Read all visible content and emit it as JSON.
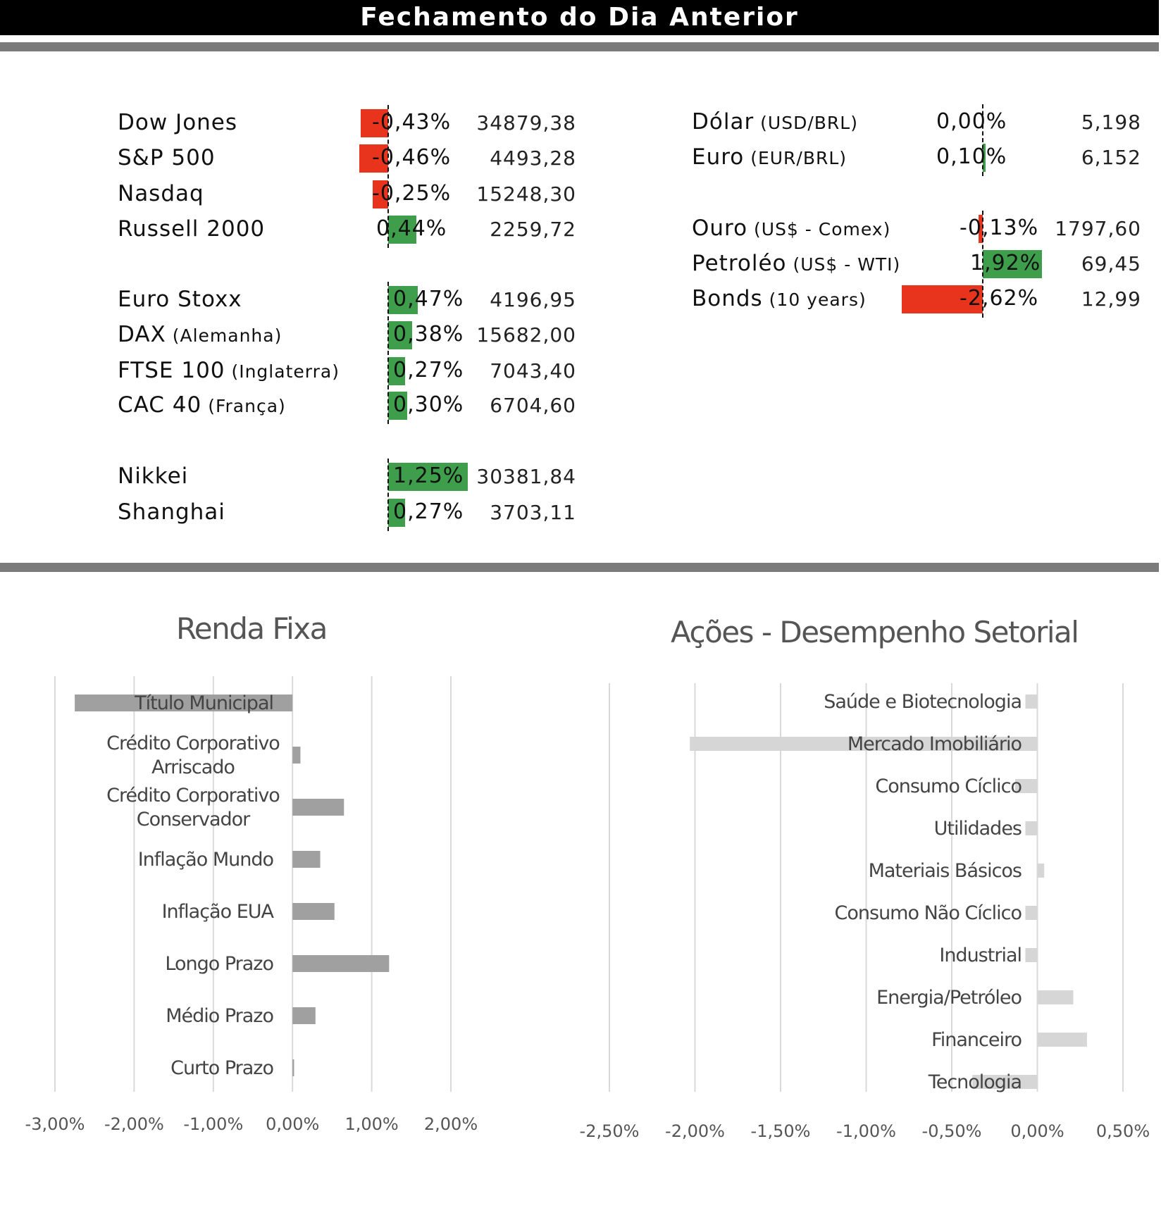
{
  "header": {
    "title": "Fechamento do Dia Anterior"
  },
  "colors": {
    "negative": "#e8341c",
    "positive": "#3e9e4b",
    "renda_bar": "#a0a0a0",
    "setor_bar": "#d6d6d6",
    "rule": "#7a7a7a"
  },
  "left_table": {
    "groups": [
      {
        "rows": [
          {
            "name": "Dow Jones",
            "sub": "",
            "pct": "-0,43%",
            "pct_value": -0.43,
            "value": "34879,38"
          },
          {
            "name": "S&P 500",
            "sub": "",
            "pct": "-0,46%",
            "pct_value": -0.46,
            "value": "4493,28"
          },
          {
            "name": "Nasdaq",
            "sub": "",
            "pct": "-0,25%",
            "pct_value": -0.25,
            "value": "15248,30"
          },
          {
            "name": "Russell 2000",
            "sub": "",
            "pct": "0,44%",
            "pct_value": 0.44,
            "value": "2259,72"
          }
        ]
      },
      {
        "rows": [
          {
            "name": "Euro Stoxx",
            "sub": "",
            "pct": "0,47%",
            "pct_value": 0.47,
            "value": "4196,95"
          },
          {
            "name": "DAX",
            "sub": "(Alemanha)",
            "pct": "0,38%",
            "pct_value": 0.38,
            "value": "15682,00"
          },
          {
            "name": "FTSE 100",
            "sub": "(Inglaterra)",
            "pct": "0,27%",
            "pct_value": 0.27,
            "value": "7043,40"
          },
          {
            "name": "CAC 40",
            "sub": "(França)",
            "pct": "0,30%",
            "pct_value": 0.3,
            "value": "6704,60"
          }
        ]
      },
      {
        "rows": [
          {
            "name": "Nikkei",
            "sub": "",
            "pct": "1,25%",
            "pct_value": 1.25,
            "value": "30381,84"
          },
          {
            "name": "Shanghai",
            "sub": "",
            "pct": "0,27%",
            "pct_value": 0.27,
            "value": "3703,11"
          }
        ]
      }
    ]
  },
  "right_table": {
    "groups": [
      {
        "rows": [
          {
            "name": "Dólar",
            "sub": "(USD/BRL)",
            "pct": "0,00%",
            "pct_value": 0.0,
            "value": "5,198"
          },
          {
            "name": "Euro",
            "sub": "(EUR/BRL)",
            "pct": "0,10%",
            "pct_value": 0.1,
            "value": "6,152"
          }
        ]
      },
      {
        "rows": [
          {
            "name": "Ouro",
            "sub": "(US$ - Comex)",
            "pct": "-0,13%",
            "pct_value": -0.13,
            "value": "1797,60"
          },
          {
            "name": "Petroléo",
            "sub": "(US$ - WTI)",
            "pct": "1,92%",
            "pct_value": 1.92,
            "value": "69,45"
          },
          {
            "name": "Bonds",
            "sub": "(10 years)",
            "pct": "-2,62%",
            "pct_value": -2.62,
            "value": "12,99"
          }
        ]
      }
    ]
  },
  "chart_data": [
    {
      "type": "bar",
      "orientation": "horizontal",
      "title": "Renda Fixa",
      "categories": [
        "Título Municipal",
        "Crédito Corporativo Arriscado",
        "Crédito Corporativo Conservador",
        "Inflação Mundo",
        "Inflação EUA",
        "Longo Prazo",
        "Médio Prazo",
        "Curto Prazo"
      ],
      "values": [
        -2.75,
        0.1,
        0.65,
        0.35,
        0.53,
        1.22,
        0.29,
        0.02
      ],
      "xlim": [
        -3.0,
        2.0
      ],
      "xticks": [
        "-3,00%",
        "-2,00%",
        "-1,00%",
        "0,00%",
        "1,00%",
        "2,00%"
      ],
      "grid": true
    },
    {
      "type": "bar",
      "orientation": "horizontal",
      "title": "Ações - Desempenho Setorial",
      "categories": [
        "Saúde e Biotecnologia",
        "Mercado Imobiliário",
        "Consumo Cíclico",
        "Utilidades",
        "Materiais Básicos",
        "Consumo Não Cíclico",
        "Industrial",
        "Energia/Petróleo",
        "Financeiro",
        "Tecnologia"
      ],
      "values": [
        -0.07,
        -2.03,
        -0.13,
        -0.07,
        0.04,
        -0.07,
        -0.07,
        0.21,
        0.29,
        -0.38
      ],
      "xlim": [
        -2.5,
        0.5
      ],
      "xticks": [
        "-2,50%",
        "-2,00%",
        "-1,50%",
        "-1,00%",
        "-0,50%",
        "0,00%",
        "0,50%"
      ],
      "grid": true
    }
  ]
}
